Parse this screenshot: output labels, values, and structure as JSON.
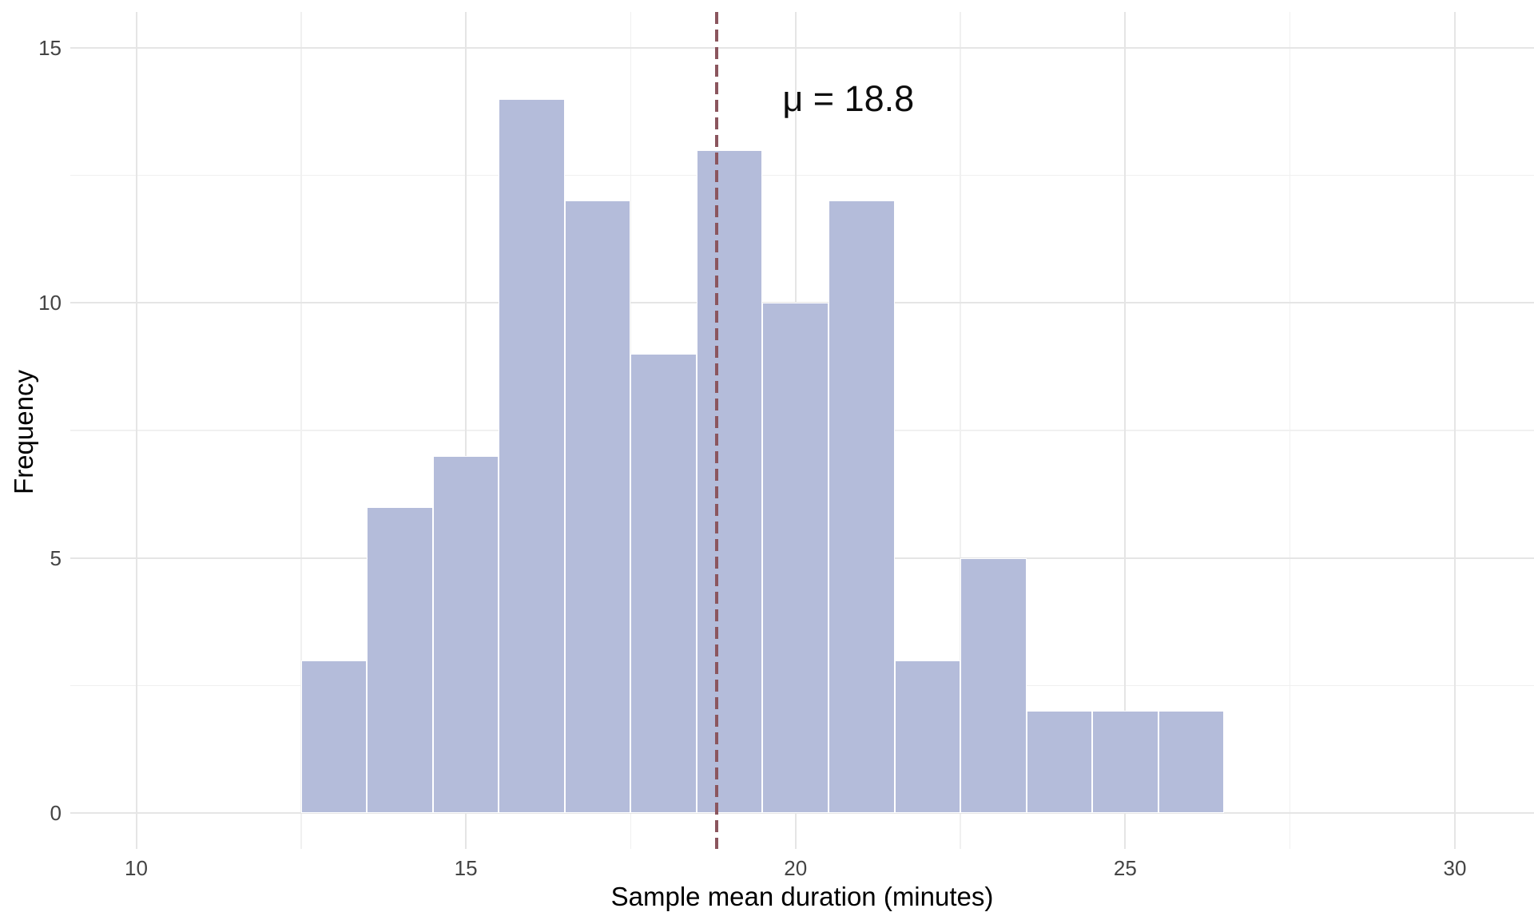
{
  "chart_data": {
    "type": "bar",
    "subtype": "histogram",
    "title": "",
    "xlabel": "Sample mean duration (minutes)",
    "ylabel": "Frequency",
    "bin_start": 12.5,
    "bin_width": 1,
    "bin_edges": [
      12.5,
      13.5,
      14.5,
      15.5,
      16.5,
      17.5,
      18.5,
      19.5,
      20.5,
      21.5,
      22.5,
      23.5,
      24.5,
      25.5,
      26.5
    ],
    "counts": [
      3,
      6,
      7,
      14,
      12,
      9,
      13,
      10,
      12,
      3,
      5,
      2,
      2,
      2
    ],
    "x_ticks": [
      10,
      15,
      20,
      25,
      30
    ],
    "y_ticks": [
      0,
      5,
      10,
      15
    ],
    "x_minor_ticks": [
      12.5,
      17.5,
      22.5,
      27.5
    ],
    "y_minor_ticks": [
      2.5,
      7.5,
      12.5
    ],
    "xlim": [
      9.0,
      31.2
    ],
    "ylim": [
      -0.7,
      15.7
    ],
    "grid": true,
    "legend_position": "none",
    "mean_line": {
      "value": 18.8,
      "style": "dashed",
      "color": "#8B565E"
    },
    "annotation": {
      "text": "μ = 18.8",
      "x": 20.8,
      "y": 14.0
    },
    "colors": {
      "bar_fill": "#B4BCDA",
      "bar_border": "#FFFFFF",
      "grid_major": "#E5E5E5",
      "grid_minor": "#F0F0F0",
      "tick_label": "#444444",
      "axis_title": "#000000",
      "background": "#FFFFFF"
    }
  }
}
